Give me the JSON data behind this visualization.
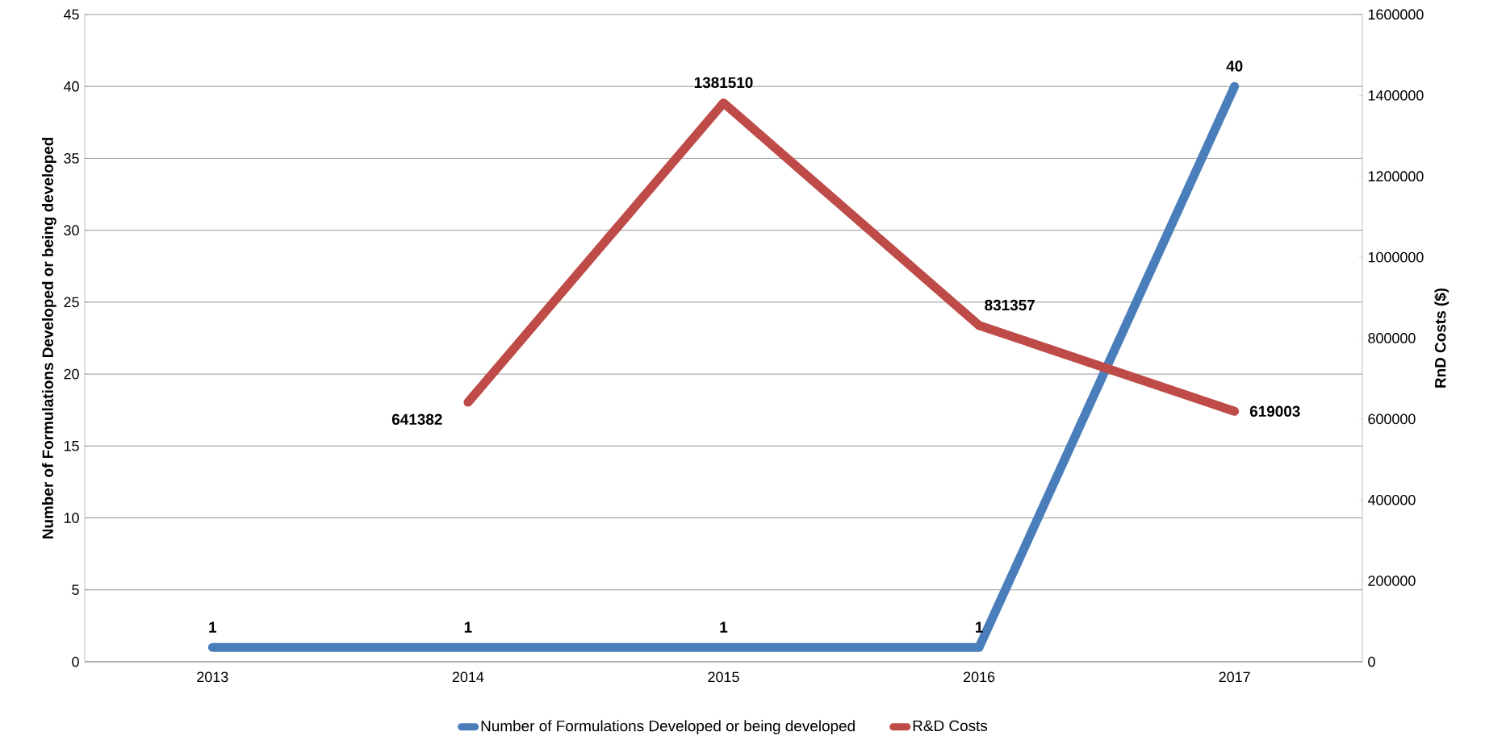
{
  "chart_data": {
    "type": "line",
    "categories": [
      "2013",
      "2014",
      "2015",
      "2016",
      "2017"
    ],
    "series": [
      {
        "name": "Number of Formulations Developed or being developed",
        "color": "#4a7ebb",
        "values": [
          1,
          1,
          1,
          1,
          40
        ],
        "axis": "y"
      },
      {
        "name": "R&D Costs",
        "color": "#be4b48",
        "values": [
          null,
          641382,
          1381510,
          831357,
          619003
        ],
        "axis": "y2"
      }
    ],
    "ylabel": "Number of Formulations Developed or being developed",
    "y2label": "RnD Costs ($)",
    "ylim": [
      0,
      45
    ],
    "yticks": [
      0,
      5,
      10,
      15,
      20,
      25,
      30,
      35,
      40,
      45
    ],
    "y2lim": [
      0,
      1600000
    ],
    "y2ticks": [
      0,
      200000,
      400000,
      600000,
      800000,
      1000000,
      1200000,
      1400000,
      1600000
    ],
    "grid": "y",
    "legend": "bottom",
    "data_labels": true,
    "marker": "none",
    "line_style": "solid"
  }
}
